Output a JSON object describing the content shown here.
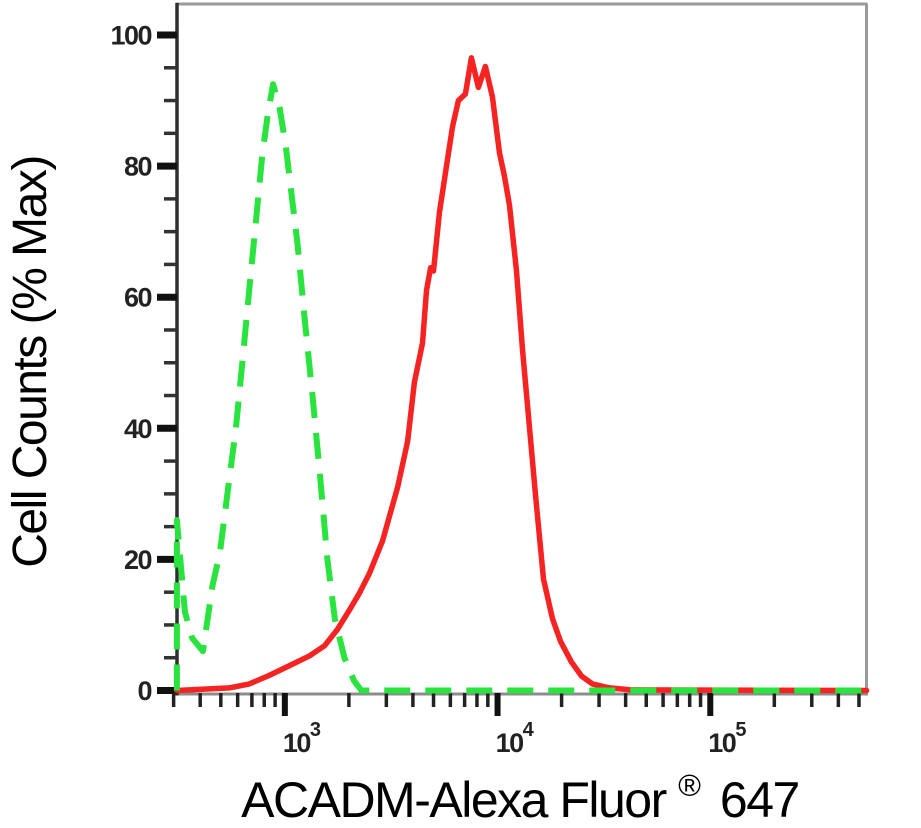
{
  "chart_data": {
    "type": "line",
    "subtype": "flow-cytometry-histogram",
    "xlabel_main": "ACADM-Alexa Fluor",
    "xlabel_registered": "®",
    "xlabel_suffix": "647",
    "ylabel": "Cell Counts (% Max)",
    "x_scale": "log",
    "x_tick_base": "10",
    "x_major_tick_exponents": [
      3,
      4,
      5
    ],
    "x_minor_ticks_per_decade": [
      2,
      3,
      4,
      5,
      6,
      7,
      8,
      9
    ],
    "x_range_log10": [
      2.493,
      5.732
    ],
    "ylim": [
      0,
      100
    ],
    "y_major_ticks": [
      0,
      20,
      40,
      60,
      80,
      100
    ],
    "y_minor_step": 5,
    "grid": false,
    "legend": "none",
    "series": [
      {
        "name": "sample_red_solid",
        "color": "#f52322",
        "style": "solid",
        "line_width": 5.5,
        "points": [
          [
            311,
            0
          ],
          [
            548,
            0.4
          ],
          [
            681,
            1.0
          ],
          [
            845,
            2.3
          ],
          [
            1052,
            3.8
          ],
          [
            1307,
            5.3
          ],
          [
            1535,
            6.8
          ],
          [
            1766,
            9.3
          ],
          [
            2014,
            12.3
          ],
          [
            2245,
            14.9
          ],
          [
            2500,
            17.9
          ],
          [
            2877,
            22.8
          ],
          [
            3388,
            31
          ],
          [
            3776,
            38
          ],
          [
            4064,
            47
          ],
          [
            4436,
            53
          ],
          [
            4634,
            61
          ],
          [
            4842,
            64.5
          ],
          [
            5000,
            64
          ],
          [
            5333,
            73
          ],
          [
            5754,
            80
          ],
          [
            6138,
            86
          ],
          [
            6546,
            90
          ],
          [
            7063,
            91
          ],
          [
            7534,
            96.5
          ],
          [
            8128,
            92
          ],
          [
            8770,
            95.2
          ],
          [
            9462,
            90.5
          ],
          [
            10210,
            82
          ],
          [
            10765,
            78.5
          ],
          [
            11376,
            74
          ],
          [
            12274,
            64
          ],
          [
            13092,
            52
          ],
          [
            13964,
            42
          ],
          [
            15066,
            30
          ],
          [
            16444,
            17
          ],
          [
            18113,
            11
          ],
          [
            19770,
            7.5
          ],
          [
            22284,
            4.3
          ],
          [
            24831,
            2.2
          ],
          [
            27925,
            1.0
          ],
          [
            33574,
            0.4
          ],
          [
            41687,
            0.1
          ],
          [
            543000,
            0
          ]
        ]
      },
      {
        "name": "control_green_dashed",
        "color": "#2ae33e",
        "style": "dashed",
        "line_width": 6,
        "dash_pattern": [
          26,
          15
        ],
        "points": [
          [
            311,
            0
          ],
          [
            311,
            26
          ],
          [
            339,
            12
          ],
          [
            367,
            8
          ],
          [
            412,
            6
          ],
          [
            457,
            16
          ],
          [
            495,
            21
          ],
          [
            537,
            30
          ],
          [
            589,
            40
          ],
          [
            631,
            50
          ],
          [
            684,
            62
          ],
          [
            733,
            72
          ],
          [
            785,
            82
          ],
          [
            832,
            88
          ],
          [
            881,
            92.5
          ],
          [
            944,
            89
          ],
          [
            1010,
            83
          ],
          [
            1072,
            76
          ],
          [
            1148,
            68
          ],
          [
            1245,
            56
          ],
          [
            1349,
            45
          ],
          [
            1462,
            33
          ],
          [
            1585,
            20
          ],
          [
            1718,
            11
          ],
          [
            1905,
            5
          ],
          [
            2113,
            1.5
          ],
          [
            2291,
            0
          ],
          [
            543000,
            0
          ]
        ]
      }
    ]
  }
}
